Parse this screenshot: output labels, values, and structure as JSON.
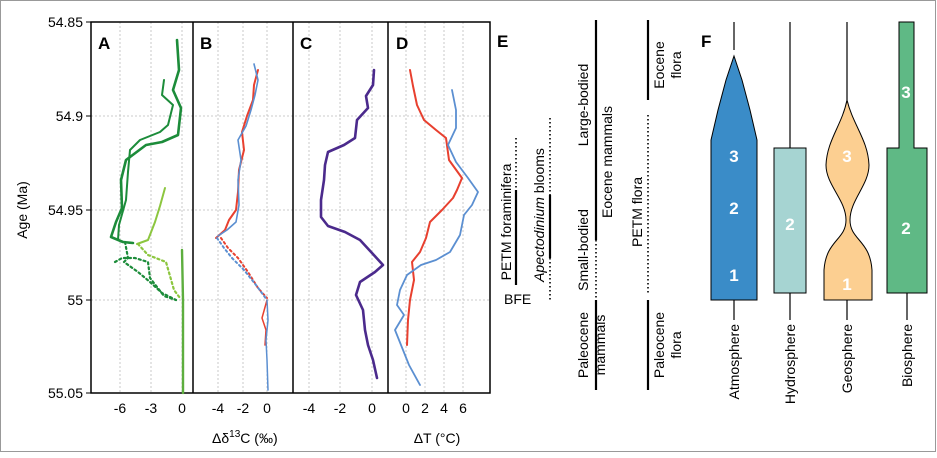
{
  "figure": {
    "y_axis": {
      "label": "Age (Ma)",
      "ticks": [
        "54.85",
        "54.9",
        "54.95",
        "55",
        "55.05"
      ]
    },
    "panels": {
      "A": {
        "letter": "A",
        "ticks": [
          "-6",
          "-3",
          "0"
        ]
      },
      "B": {
        "letter": "B",
        "ticks": [
          "-4",
          "-2",
          "0"
        ]
      },
      "C": {
        "letter": "C",
        "ticks": [
          "-4",
          "-2",
          "0"
        ]
      },
      "D": {
        "letter": "D",
        "ticks": [
          "0",
          "2",
          "4",
          "6"
        ]
      }
    },
    "xlabel_AB_prefix": "Δδ",
    "xlabel_AB_sup": "13",
    "xlabel_AB_suffix": "C (‰)",
    "xlabel_CD": "ΔT (°C)",
    "panel_E": {
      "letter": "E",
      "labels": {
        "petm_foraminifera": "PETM foraminifera",
        "bfe": "BFE",
        "apecto_italic": "Apectodinium",
        "apecto_rest": " blooms",
        "large_bodied": "Large-bodied",
        "eocene_mammals": "Eocene mammals",
        "small_bodied": "Small-bodied",
        "paleocene_mammals_1": "Paleocene",
        "paleocene_mammals_2": "mammals",
        "eocene_flora_1": "Eocene",
        "eocene_flora_2": "flora",
        "petm_flora": "PETM flora",
        "paleocene_flora_1": "Paleocene",
        "paleocene_flora_2": "flora"
      }
    },
    "panel_F": {
      "letter": "F",
      "spheres": [
        {
          "name": "Atmosphere",
          "color": "#3a8cc8",
          "numbers": [
            "3",
            "2",
            "1"
          ]
        },
        {
          "name": "Hydrosphere",
          "color": "#a6d4d2",
          "numbers": [
            "2"
          ]
        },
        {
          "name": "Geosphere",
          "color": "#fccf91",
          "numbers": [
            "3",
            "1"
          ]
        },
        {
          "name": "Biosphere",
          "color": "#5fb985",
          "numbers": [
            "3",
            "2"
          ]
        }
      ]
    }
  },
  "colors": {
    "dark_green": "#1c8c3a",
    "light_green": "#8cc63f",
    "red": "#e8402f",
    "blue": "#5b8fd1",
    "purple": "#4b2a8c",
    "grid": "#bbbbbb"
  }
}
